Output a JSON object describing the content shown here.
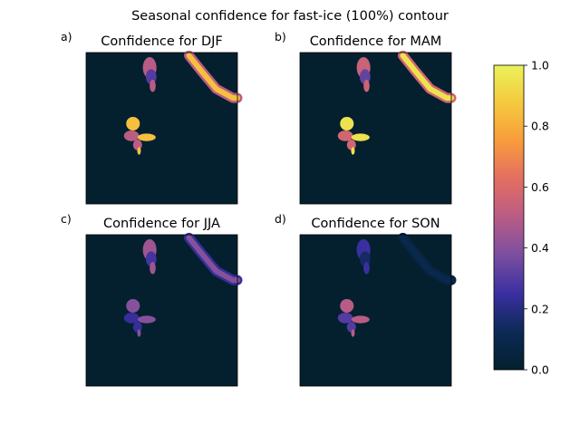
{
  "figure": {
    "title": "Seasonal confidence for fast-ice (100%) contour"
  },
  "chart_data": {
    "type": "heatmap",
    "colormap": "thermal",
    "background_color": "#04202f",
    "colorbar": {
      "range": [
        0.0,
        1.0
      ],
      "ticks": [
        "0.0",
        "0.2",
        "0.4",
        "0.6",
        "0.8",
        "1.0"
      ],
      "stops": [
        "#04202f",
        "#0b2a55",
        "#3a2fa0",
        "#7a4ea0",
        "#b85c86",
        "#e36d62",
        "#f89b3c",
        "#f5c93e",
        "#eaf25a"
      ]
    },
    "panels": [
      {
        "letter": "a)",
        "title": "Confidence for DJF",
        "regions": [
          {
            "name": "upper island",
            "peak_confidence": 0.5
          },
          {
            "name": "coastal strip",
            "peak_confidence": 0.85
          },
          {
            "name": "lower island",
            "peak_confidence": 0.85
          }
        ]
      },
      {
        "letter": "b)",
        "title": "Confidence for MAM",
        "regions": [
          {
            "name": "upper island",
            "peak_confidence": 0.55
          },
          {
            "name": "coastal strip",
            "peak_confidence": 0.95
          },
          {
            "name": "lower island",
            "peak_confidence": 0.95
          }
        ]
      },
      {
        "letter": "c)",
        "title": "Confidence for JJA",
        "regions": [
          {
            "name": "upper island",
            "peak_confidence": 0.45
          },
          {
            "name": "coastal strip",
            "peak_confidence": 0.4
          },
          {
            "name": "lower island",
            "peak_confidence": 0.4
          }
        ]
      },
      {
        "letter": "d)",
        "title": "Confidence for SON",
        "regions": [
          {
            "name": "upper island",
            "peak_confidence": 0.25
          },
          {
            "name": "coastal strip",
            "peak_confidence": 0.1
          },
          {
            "name": "lower island",
            "peak_confidence": 0.5
          }
        ]
      }
    ]
  }
}
